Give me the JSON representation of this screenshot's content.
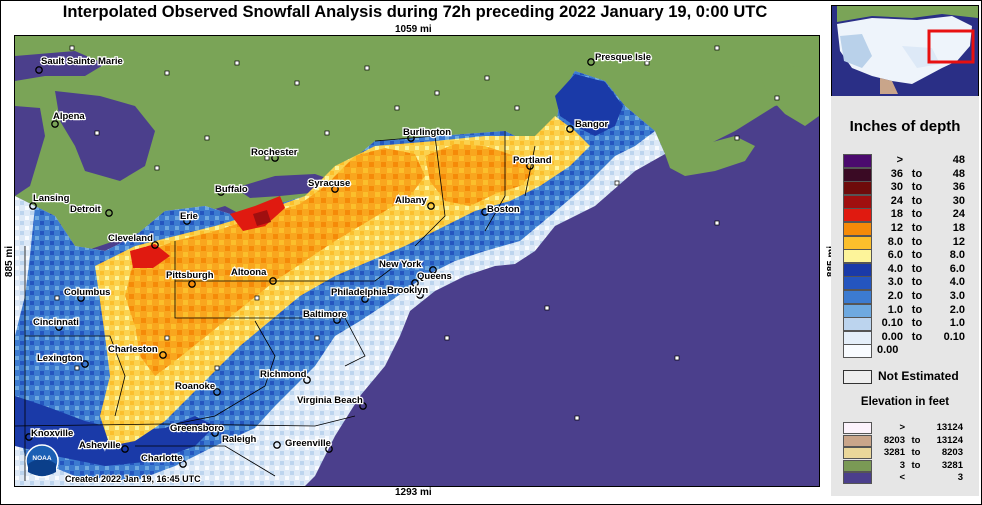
{
  "title": "Interpolated Observed Snowfall Analysis during 72h preceding 2022 January 19, 0:00 UTC",
  "distances": {
    "top": "1059 mi",
    "bottom": "1293 mi",
    "left": "885 mi",
    "right": "885 mi"
  },
  "credit": "Created 2022 Jan 19, 16:45 UTC",
  "logo_text": "NOAA",
  "cities": [
    {
      "name": "Sault Sainte Marie"
    },
    {
      "name": "Presque Isle"
    },
    {
      "name": "Alpena"
    },
    {
      "name": "Burlington"
    },
    {
      "name": "Bangor"
    },
    {
      "name": "Portland"
    },
    {
      "name": "Rochester"
    },
    {
      "name": "Syracuse"
    },
    {
      "name": "Buffalo"
    },
    {
      "name": "Lansing"
    },
    {
      "name": "Detroit"
    },
    {
      "name": "Albany"
    },
    {
      "name": "Boston"
    },
    {
      "name": "Erie"
    },
    {
      "name": "Cleveland"
    },
    {
      "name": "New York"
    },
    {
      "name": "Queens"
    },
    {
      "name": "Pittsburgh"
    },
    {
      "name": "Altoona"
    },
    {
      "name": "Philadelphia"
    },
    {
      "name": "Brooklyn"
    },
    {
      "name": "Columbus"
    },
    {
      "name": "Baltimore"
    },
    {
      "name": "Cincinnati"
    },
    {
      "name": "Charleston"
    },
    {
      "name": "Lexington"
    },
    {
      "name": "Richmond"
    },
    {
      "name": "Roanoke"
    },
    {
      "name": "Virginia Beach"
    },
    {
      "name": "Knoxville"
    },
    {
      "name": "Greensboro"
    },
    {
      "name": "Raleigh"
    },
    {
      "name": "Greenville"
    },
    {
      "name": "Asheville"
    },
    {
      "name": "Charlotte"
    }
  ],
  "legend": {
    "title": "Inches of depth",
    "to_word": "to",
    "snow_classes": [
      {
        "from": ">",
        "to": "",
        "value": "48",
        "color": "#4b0a6e"
      },
      {
        "from": "36",
        "to": "to",
        "value": "48",
        "color": "#3a0a24"
      },
      {
        "from": "30",
        "to": "to",
        "value": "36",
        "color": "#6e0b0b"
      },
      {
        "from": "24",
        "to": "to",
        "value": "30",
        "color": "#a00f0f"
      },
      {
        "from": "18",
        "to": "to",
        "value": "24",
        "color": "#e01a10"
      },
      {
        "from": "12",
        "to": "to",
        "value": "18",
        "color": "#f58a08"
      },
      {
        "from": "8.0",
        "to": "to",
        "value": "12",
        "color": "#fbbf2c"
      },
      {
        "from": "6.0",
        "to": "to",
        "value": "8.0",
        "color": "#fdf49a"
      },
      {
        "from": "4.0",
        "to": "to",
        "value": "6.0",
        "color": "#1a3aa8"
      },
      {
        "from": "3.0",
        "to": "to",
        "value": "4.0",
        "color": "#2455bf"
      },
      {
        "from": "2.0",
        "to": "to",
        "value": "3.0",
        "color": "#3c7bd0"
      },
      {
        "from": "1.0",
        "to": "to",
        "value": "2.0",
        "color": "#6ea9e0"
      },
      {
        "from": "0.10",
        "to": "to",
        "value": "1.0",
        "color": "#bcd4ee"
      },
      {
        "from": "0.00",
        "to": "to",
        "value": "0.10",
        "color": "#e4eef9"
      },
      {
        "from": "0.00",
        "to": "",
        "value": "",
        "color": "#f8fbff"
      }
    ],
    "not_estimated": "Not Estimated",
    "elevation_title": "Elevation in feet",
    "elevation_classes": [
      {
        "from": ">",
        "to": "",
        "value": "13124",
        "color": "#fcf3fc"
      },
      {
        "from": "8203",
        "to": "to",
        "value": "13124",
        "color": "#c9a58a"
      },
      {
        "from": "3281",
        "to": "to",
        "value": "8203",
        "color": "#ead79a"
      },
      {
        "from": "3",
        "to": "to",
        "value": "3281",
        "color": "#7a9a55"
      },
      {
        "from": "<",
        "to": "",
        "value": "3",
        "color": "#4b3f8c"
      }
    ]
  },
  "colors": {
    "ocean": "#4b3f8c",
    "land_bare": "#7aa457",
    "inset_highlight": "#e81010"
  }
}
